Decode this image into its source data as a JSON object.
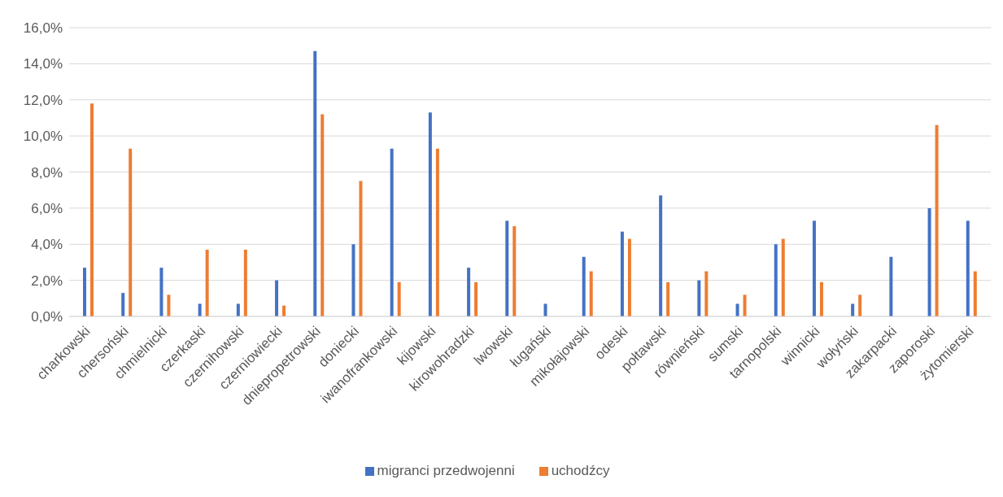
{
  "chart_data": {
    "type": "bar",
    "categories": [
      "charkowski",
      "chersoński",
      "chmielnicki",
      "czerkaski",
      "czernihowski",
      "czerniowiecki",
      "dniepropetrowski",
      "doniecki",
      "iwanofrankowski",
      "kijowski",
      "kirowohradzki",
      "lwowski",
      "ługański",
      "mikołajowski",
      "odeski",
      "połtawski",
      "równieński",
      "sumski",
      "tarnopolski",
      "winnicki",
      "wołyński",
      "zakarpacki",
      "zaporoski",
      "żytomierski"
    ],
    "series": [
      {
        "name": "migranci przedwojenni",
        "color": "#4472c4",
        "values": [
          2.7,
          1.3,
          2.7,
          0.7,
          0.7,
          2.0,
          14.7,
          4.0,
          9.3,
          11.3,
          2.7,
          5.3,
          0.7,
          3.3,
          4.7,
          6.7,
          2.0,
          0.7,
          4.0,
          5.3,
          0.7,
          3.3,
          6.0,
          5.3
        ]
      },
      {
        "name": "uchodźcy",
        "color": "#ed7d31",
        "values": [
          11.8,
          9.3,
          1.2,
          3.7,
          3.7,
          0.6,
          11.2,
          7.5,
          1.9,
          9.3,
          1.9,
          5.0,
          0,
          2.5,
          4.3,
          1.9,
          2.5,
          1.2,
          4.3,
          1.9,
          1.2,
          0,
          10.6,
          2.5
        ]
      }
    ],
    "ylim": [
      0,
      16
    ],
    "yticks": [
      {
        "value": 0,
        "label": "0,0%"
      },
      {
        "value": 2,
        "label": "2,0%"
      },
      {
        "value": 4,
        "label": "4,0%"
      },
      {
        "value": 6,
        "label": "6,0%"
      },
      {
        "value": 8,
        "label": "8,0%"
      },
      {
        "value": 10,
        "label": "10,0%"
      },
      {
        "value": 12,
        "label": "12,0%"
      },
      {
        "value": 14,
        "label": "14,0%"
      },
      {
        "value": 16,
        "label": "16,0%"
      }
    ],
    "grid": "y",
    "legend": "bottom"
  }
}
